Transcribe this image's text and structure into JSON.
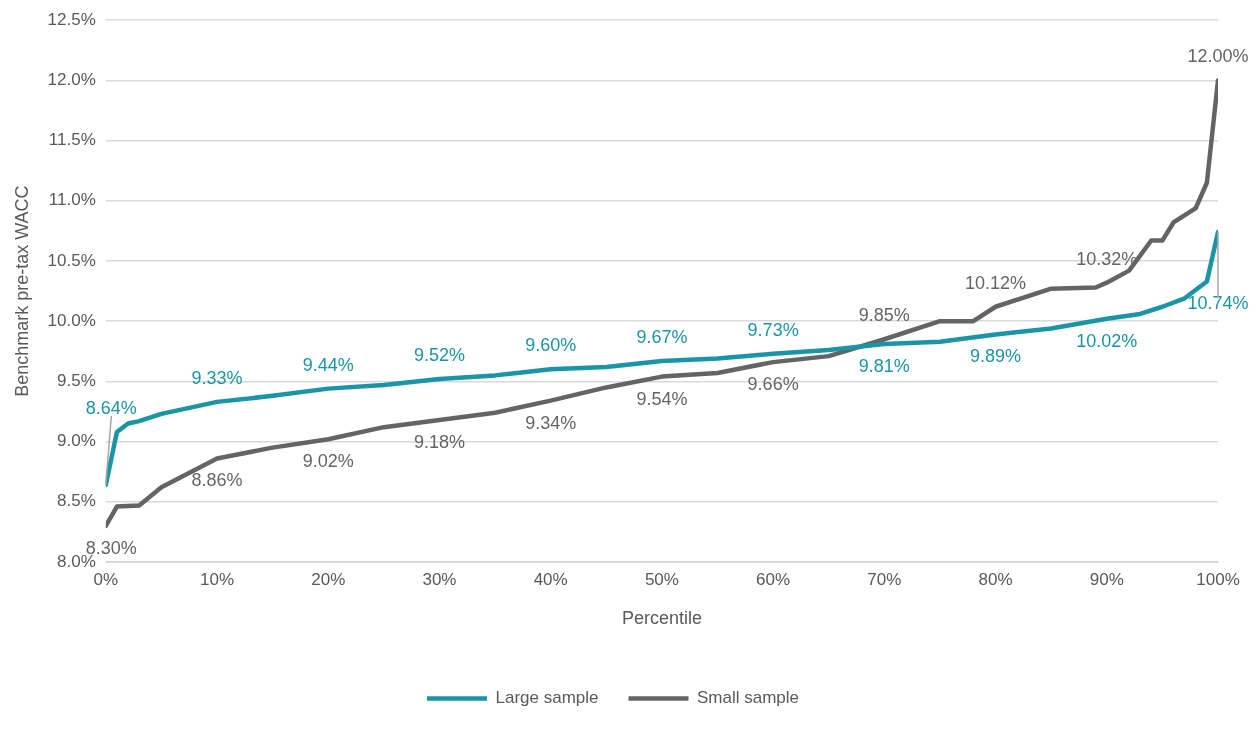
{
  "chart_data": {
    "type": "line",
    "xlabel": "Percentile",
    "ylabel": "Benchmark pre-tax WACC",
    "xlim": [
      0,
      100
    ],
    "xticks": [
      {
        "value": 0,
        "label": "0%"
      },
      {
        "value": 10,
        "label": "10%"
      },
      {
        "value": 20,
        "label": "20%"
      },
      {
        "value": 30,
        "label": "30%"
      },
      {
        "value": 40,
        "label": "40%"
      },
      {
        "value": 50,
        "label": "50%"
      },
      {
        "value": 60,
        "label": "60%"
      },
      {
        "value": 70,
        "label": "70%"
      },
      {
        "value": 80,
        "label": "80%"
      },
      {
        "value": 90,
        "label": "90%"
      },
      {
        "value": 100,
        "label": "100%"
      }
    ],
    "ylim": [
      8,
      12.5
    ],
    "yticks": [
      {
        "value": 8,
        "label": "8.0%"
      },
      {
        "value": 8.5,
        "label": "8.5%"
      },
      {
        "value": 9,
        "label": "9.0%"
      },
      {
        "value": 9.5,
        "label": "9.5%"
      },
      {
        "value": 10,
        "label": "10.0%"
      },
      {
        "value": 10.5,
        "label": "10.5%"
      },
      {
        "value": 11,
        "label": "11.0%"
      },
      {
        "value": 11.5,
        "label": "11.5%"
      },
      {
        "value": 12,
        "label": "12.0%"
      },
      {
        "value": 12.5,
        "label": "12.5%"
      }
    ],
    "grid": "y",
    "legend": "bottom",
    "marker": "none",
    "line_style": "solid",
    "series": [
      {
        "name": "Large sample",
        "color": "#1a95a5",
        "x": [
          0,
          1,
          2,
          3,
          5,
          10,
          15,
          20,
          25,
          30,
          35,
          40,
          45,
          50,
          55,
          60,
          65,
          70,
          75,
          80,
          85,
          90,
          93,
          95,
          97,
          99,
          100
        ],
        "values": [
          8.64,
          9.08,
          9.15,
          9.17,
          9.23,
          9.33,
          9.38,
          9.44,
          9.47,
          9.52,
          9.55,
          9.6,
          9.62,
          9.67,
          9.69,
          9.73,
          9.76,
          9.81,
          9.83,
          9.89,
          9.94,
          10.02,
          10.06,
          10.12,
          10.19,
          10.33,
          10.74
        ],
        "value_labels": [
          "8.64%",
          null,
          null,
          null,
          null,
          "9.33%",
          null,
          "9.44%",
          null,
          "9.52%",
          null,
          "9.60%",
          null,
          "9.67%",
          null,
          "9.73%",
          null,
          "9.81%",
          null,
          "9.89%",
          null,
          "10.02%",
          null,
          null,
          null,
          null,
          "10.74%"
        ]
      },
      {
        "name": "Small sample",
        "color": "#636466",
        "x": [
          0,
          1,
          3,
          5,
          10,
          15,
          20,
          25,
          30,
          35,
          40,
          45,
          50,
          55,
          60,
          65,
          70,
          75,
          78,
          80,
          85,
          89,
          90,
          92,
          94,
          95,
          96,
          98,
          99,
          100
        ],
        "values": [
          8.3,
          8.46,
          8.47,
          8.62,
          8.86,
          8.95,
          9.02,
          9.12,
          9.18,
          9.24,
          9.34,
          9.45,
          9.54,
          9.57,
          9.66,
          9.71,
          9.85,
          10.0,
          10.0,
          10.12,
          10.27,
          10.28,
          10.32,
          10.42,
          10.67,
          10.67,
          10.82,
          10.94,
          11.15,
          12.0
        ],
        "value_labels": [
          "8.30%",
          null,
          null,
          null,
          "8.86%",
          null,
          "9.02%",
          null,
          "9.18%",
          null,
          "9.34%",
          null,
          "9.54%",
          null,
          "9.66%",
          null,
          "9.85%",
          null,
          null,
          "10.12%",
          null,
          null,
          "10.32%",
          null,
          null,
          null,
          null,
          null,
          null,
          "12.00%"
        ]
      }
    ]
  }
}
